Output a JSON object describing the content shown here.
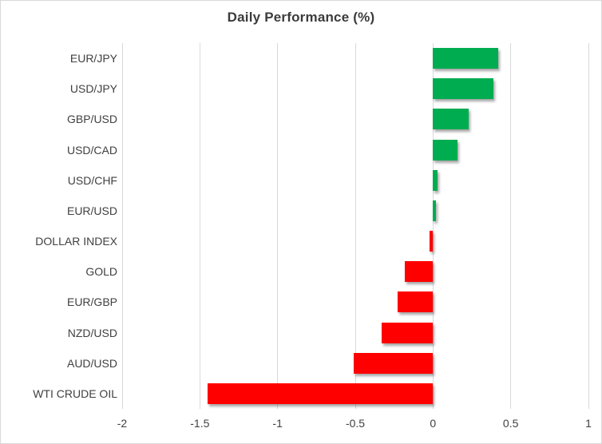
{
  "chart_data": {
    "type": "bar",
    "orientation": "horizontal",
    "title": "Daily Performance (%)",
    "xlabel": "",
    "ylabel": "",
    "categories": [
      "EUR/JPY",
      "USD/JPY",
      "GBP/USD",
      "USD/CAD",
      "USD/CHF",
      "EUR/USD",
      "DOLLAR INDEX",
      "GOLD",
      "EUR/GBP",
      "NZD/USD",
      "AUD/USD",
      "WTI CRUDE OIL"
    ],
    "values": [
      0.42,
      0.39,
      0.23,
      0.16,
      0.03,
      0.02,
      -0.02,
      -0.18,
      -0.23,
      -0.33,
      -0.51,
      -1.45
    ],
    "xlim": [
      -2,
      1
    ],
    "xticks": [
      -2,
      -1.5,
      -1,
      -0.5,
      0,
      0.5,
      1
    ],
    "xtick_labels": [
      "-2",
      "-1.5",
      "-1",
      "-0.5",
      "0",
      "0.5",
      "1"
    ],
    "grid": true,
    "legend": false,
    "colors": {
      "positive": "#00AC50",
      "negative": "#FF0000",
      "gridline": "#D9D9D9",
      "title": "#3B3B3B",
      "text": "#404040",
      "background": "#FFFFFF",
      "border": "#D9D9D9"
    }
  }
}
